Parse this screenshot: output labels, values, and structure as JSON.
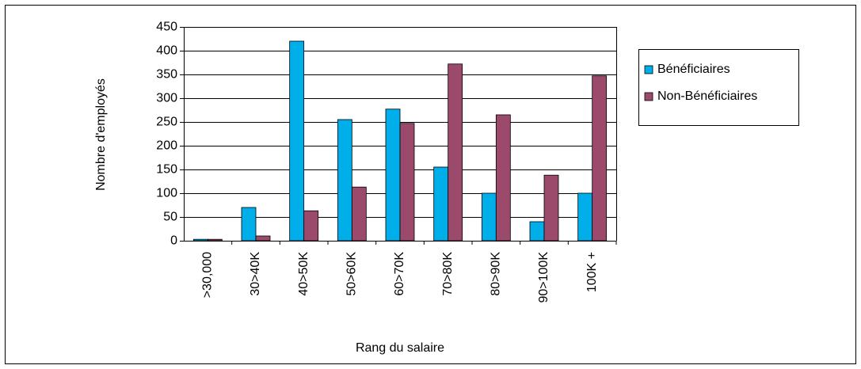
{
  "chart_data": {
    "type": "bar",
    "x_label": "Rang du salaire",
    "y_label": "Nombre d'employés",
    "categories": [
      ">30,000",
      "30>40K",
      "40>50K",
      "50>60K",
      "60>70K",
      "70>80K",
      "80>90K",
      "90>100K",
      "100K +"
    ],
    "series": [
      {
        "name": "Bénéficiaires",
        "color": "#00aeea",
        "values": [
          3,
          70,
          420,
          255,
          277,
          155,
          100,
          40,
          100
        ]
      },
      {
        "name": "Non-Bénéficiaires",
        "color": "#9b4a6c",
        "values": [
          3,
          10,
          63,
          113,
          247,
          372,
          265,
          138,
          347
        ]
      }
    ],
    "ylim": [
      0,
      450
    ],
    "yticks": [
      0,
      50,
      100,
      150,
      200,
      250,
      300,
      350,
      400,
      450
    ],
    "grid": true,
    "legend": "right"
  }
}
